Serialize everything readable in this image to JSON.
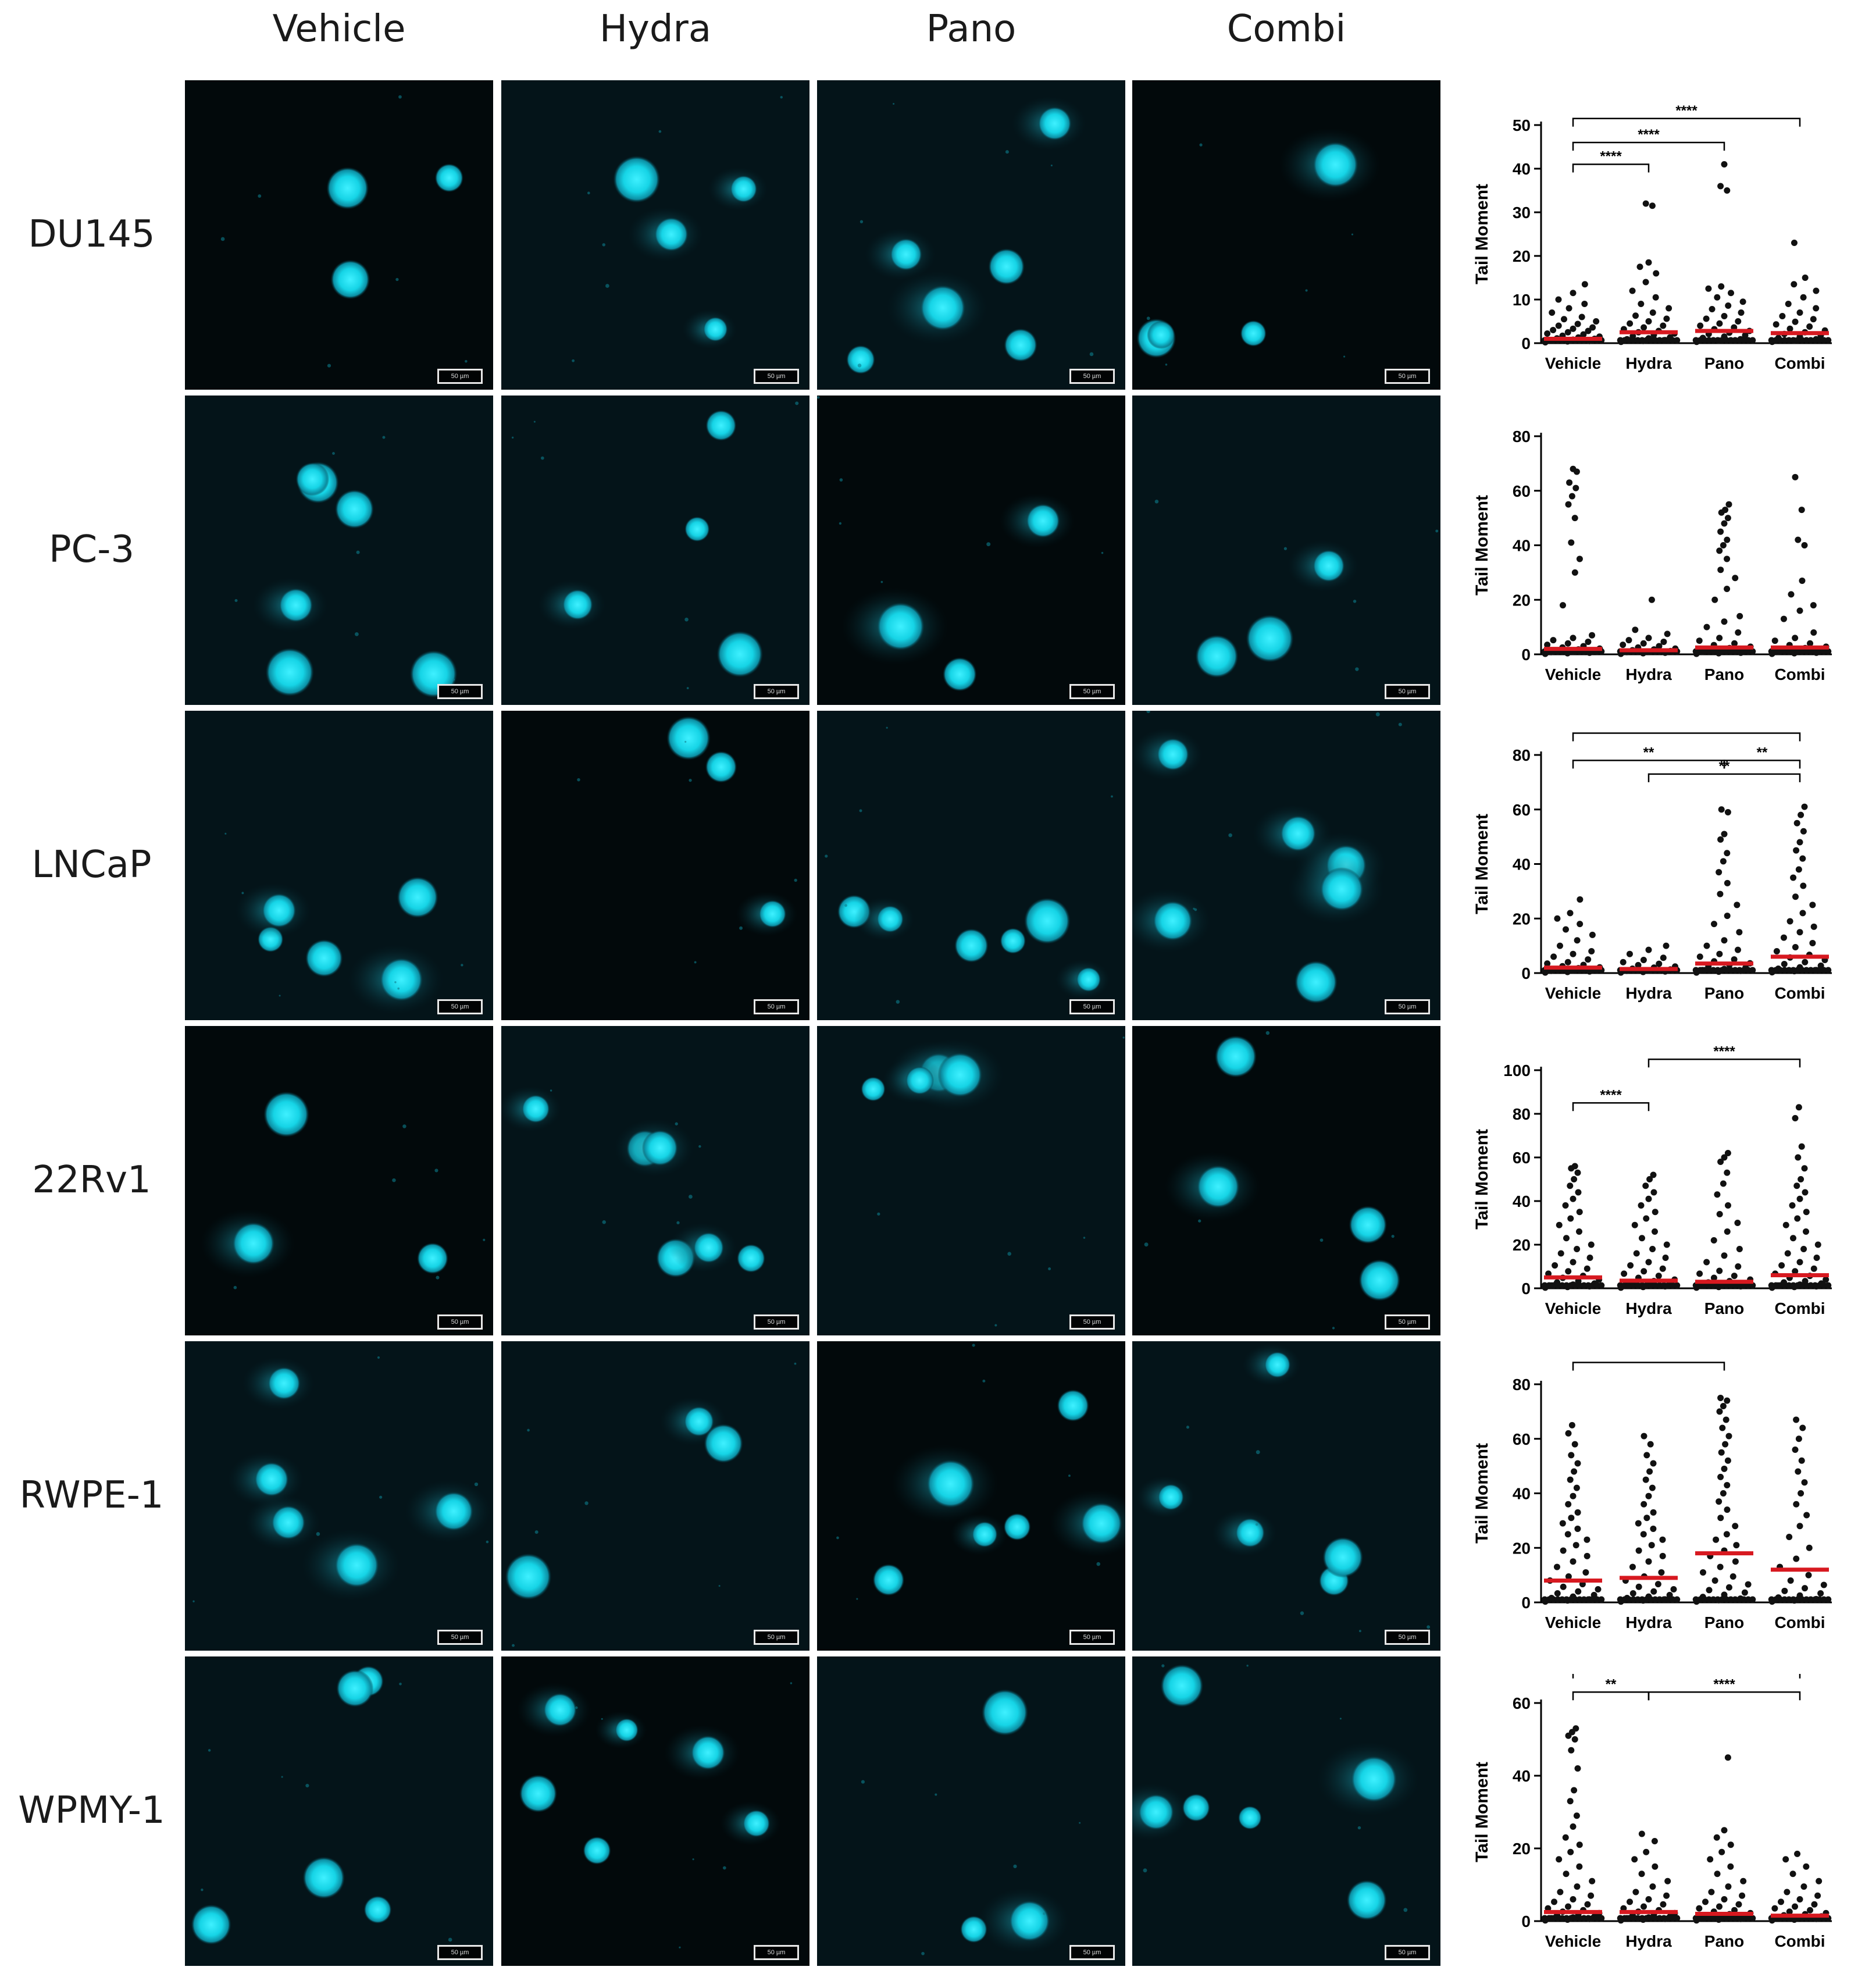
{
  "figure": {
    "columns": [
      "Vehicle",
      "Hydra",
      "Pano",
      "Combi"
    ],
    "rows": [
      "DU145",
      "PC-3",
      "LNCaP",
      "22Rv1",
      "RWPE-1",
      "WPMY-1"
    ],
    "scale_bar_label": "50 µm",
    "nucleus_color": "#16d4e6",
    "mean_line_color": "#d71920",
    "point_color": "#111111"
  },
  "chart_data": [
    {
      "type": "scatter",
      "cell_line": "DU145",
      "title": "",
      "xlabel": "",
      "ylabel": "Tail Moment",
      "categories": [
        "Vehicle",
        "Hydra",
        "Pano",
        "Combi"
      ],
      "ylim": [
        0,
        50
      ],
      "yticks": [
        0,
        10,
        20,
        30,
        40,
        50
      ],
      "means": [
        1,
        2.5,
        2.8,
        2.3
      ],
      "series": [
        {
          "values": [
            0.2,
            0.4,
            0.5,
            0.7,
            0.8,
            1,
            1.1,
            1.3,
            1.5,
            1.7,
            2,
            2.2,
            2.5,
            2.8,
            3,
            3.3,
            3.6,
            4,
            4.4,
            5,
            5.5,
            6,
            7,
            8,
            9,
            10,
            11.5,
            13.5
          ]
        },
        {
          "values": [
            0.3,
            0.5,
            0.7,
            0.9,
            1.1,
            1.3,
            1.6,
            1.9,
            2.2,
            2.5,
            2.8,
            3.2,
            3.6,
            4,
            4.5,
            5,
            5.6,
            6.3,
            7,
            8,
            9,
            10.5,
            12,
            14,
            16,
            17.5,
            18.5,
            31.5,
            32
          ]
        },
        {
          "values": [
            0.3,
            0.6,
            0.9,
            1.2,
            1.5,
            1.8,
            2.1,
            2.4,
            2.8,
            3.2,
            3.6,
            4,
            4.5,
            5,
            5.6,
            6.2,
            7,
            7.8,
            8.6,
            9.5,
            10.5,
            11.5,
            12.5,
            13,
            35,
            36,
            41
          ]
        },
        {
          "values": [
            0.3,
            0.6,
            0.9,
            1.2,
            1.5,
            1.8,
            2.1,
            2.5,
            2.9,
            3.3,
            3.8,
            4.3,
            4.9,
            5.5,
            6.2,
            7,
            8,
            9,
            10.5,
            12,
            13.5,
            15,
            23
          ]
        }
      ],
      "comparisons": [
        {
          "from": 0,
          "to": 1,
          "label": "****",
          "y": 41
        },
        {
          "from": 0,
          "to": 2,
          "label": "****",
          "y": 46
        },
        {
          "from": 0,
          "to": 3,
          "label": "****",
          "y": 51.5
        }
      ]
    },
    {
      "type": "scatter",
      "cell_line": "PC-3",
      "title": "",
      "xlabel": "",
      "ylabel": "Tail Moment",
      "categories": [
        "Vehicle",
        "Hydra",
        "Pano",
        "Combi"
      ],
      "ylim": [
        0,
        80
      ],
      "yticks": [
        0,
        20,
        40,
        60,
        80
      ],
      "means": [
        2,
        1.5,
        2.5,
        2.5
      ],
      "series": [
        {
          "values": [
            0.2,
            0.4,
            0.6,
            0.8,
            1,
            1.2,
            1.5,
            1.8,
            2.1,
            2.5,
            3,
            3.5,
            4,
            4.6,
            5.2,
            6,
            7,
            18,
            30,
            35,
            41,
            50,
            55,
            58,
            61,
            63,
            68,
            67
          ]
        },
        {
          "values": [
            0.2,
            0.4,
            0.6,
            0.8,
            1,
            1.2,
            1.5,
            1.8,
            2.1,
            2.5,
            3,
            3.5,
            4,
            4.6,
            5.2,
            6,
            7.5,
            9,
            20
          ]
        },
        {
          "values": [
            0.2,
            0.4,
            0.6,
            0.9,
            1.2,
            1.5,
            1.9,
            2.3,
            2.8,
            3.4,
            4,
            5,
            6,
            8,
            10,
            12,
            14,
            20,
            24,
            28,
            31,
            35,
            38,
            40,
            42,
            45,
            48,
            50,
            52,
            53,
            55
          ]
        },
        {
          "values": [
            0.2,
            0.4,
            0.6,
            0.9,
            1.2,
            1.5,
            1.9,
            2.3,
            2.8,
            3.4,
            4,
            5,
            6,
            8,
            13,
            16,
            18,
            22,
            27,
            40,
            42,
            53,
            65
          ]
        }
      ],
      "comparisons": []
    },
    {
      "type": "scatter",
      "cell_line": "LNCaP",
      "title": "",
      "xlabel": "",
      "ylabel": "Tail Moment",
      "categories": [
        "Vehicle",
        "Hydra",
        "Pano",
        "Combi"
      ],
      "ylim": [
        0,
        80
      ],
      "yticks": [
        0,
        20,
        40,
        60,
        80
      ],
      "means": [
        2,
        1.5,
        3.5,
        6
      ],
      "series": [
        {
          "values": [
            0.2,
            0.4,
            0.6,
            0.8,
            1,
            1.2,
            1.5,
            1.8,
            2.1,
            2.5,
            3,
            3.5,
            4,
            5,
            6,
            7,
            8,
            10,
            12,
            14,
            16,
            18,
            20,
            22,
            27
          ]
        },
        {
          "values": [
            0.2,
            0.4,
            0.6,
            0.8,
            1,
            1.3,
            1.6,
            2,
            2.4,
            2.9,
            3.4,
            4,
            4.8,
            5.6,
            7,
            8.5,
            10
          ]
        },
        {
          "values": [
            0.2,
            0.5,
            0.8,
            1.1,
            1.5,
            2,
            2.5,
            3,
            3.6,
            4.3,
            5,
            6,
            7,
            8.5,
            10,
            12,
            15,
            18,
            21,
            25,
            29,
            33,
            37,
            41,
            44,
            49,
            51,
            59,
            60
          ]
        },
        {
          "values": [
            0.3,
            0.7,
            1.1,
            1.6,
            2.1,
            2.7,
            3.3,
            4,
            4.8,
            5.7,
            6.7,
            8,
            9.5,
            11,
            13,
            15,
            17,
            19,
            22,
            25,
            28,
            32,
            35,
            38,
            42,
            45,
            48,
            52,
            55,
            58,
            61
          ]
        }
      ],
      "comparisons": [
        {
          "from": 0,
          "to": 2,
          "label": "**",
          "y": 78
        },
        {
          "from": 2,
          "to": 3,
          "label": "**",
          "y": 78
        },
        {
          "from": 1,
          "to": 3,
          "label": "**",
          "y": 73
        },
        {
          "from": 0,
          "to": 3,
          "label": "****",
          "y": 88
        }
      ]
    },
    {
      "type": "scatter",
      "cell_line": "22Rv1",
      "title": "",
      "xlabel": "",
      "ylabel": "Tail Moment",
      "categories": [
        "Vehicle",
        "Hydra",
        "Pano",
        "Combi"
      ],
      "ylim": [
        0,
        100
      ],
      "yticks": [
        0,
        20,
        40,
        60,
        80,
        100
      ],
      "means": [
        5,
        3.5,
        3,
        6
      ],
      "series": [
        {
          "values": [
            0.3,
            0.6,
            0.9,
            1.3,
            1.7,
            2.2,
            2.7,
            3.3,
            4,
            4.8,
            5.7,
            6.7,
            7.8,
            9,
            10.5,
            12,
            14,
            16,
            18,
            20,
            23,
            26,
            29,
            32,
            35,
            38,
            41,
            44,
            47,
            50,
            53,
            55,
            56
          ]
        },
        {
          "values": [
            0.3,
            0.6,
            0.9,
            1.3,
            1.7,
            2.2,
            2.7,
            3.3,
            4,
            4.8,
            5.7,
            6.7,
            7.8,
            9,
            10.5,
            12,
            14,
            16,
            18,
            20,
            23,
            26,
            29,
            32,
            35,
            38,
            41,
            44,
            47,
            50,
            52
          ]
        },
        {
          "values": [
            0.3,
            0.6,
            0.9,
            1.3,
            1.7,
            2.2,
            2.7,
            3.3,
            4,
            4.8,
            5.7,
            6.7,
            8,
            10,
            12,
            15,
            18,
            22,
            26,
            30,
            34,
            38,
            43,
            48,
            53,
            58,
            60,
            62
          ]
        },
        {
          "values": [
            0.3,
            0.6,
            0.9,
            1.3,
            1.7,
            2.2,
            2.7,
            3.3,
            4,
            4.8,
            5.7,
            6.7,
            7.8,
            9,
            10.5,
            12,
            14,
            16,
            18,
            20,
            23,
            26,
            29,
            32,
            35,
            38,
            41,
            44,
            47,
            50,
            55,
            60,
            65,
            78,
            83
          ]
        }
      ],
      "comparisons": [
        {
          "from": 0,
          "to": 1,
          "label": "****",
          "y": 85
        },
        {
          "from": 1,
          "to": 3,
          "label": "****",
          "y": 105
        }
      ]
    },
    {
      "type": "scatter",
      "cell_line": "RWPE-1",
      "title": "",
      "xlabel": "",
      "ylabel": "Tail Moment",
      "categories": [
        "Vehicle",
        "Hydra",
        "Pano",
        "Combi"
      ],
      "ylim": [
        0,
        80
      ],
      "yticks": [
        0,
        20,
        40,
        60,
        80
      ],
      "means": [
        8,
        9,
        18,
        12
      ],
      "series": [
        {
          "values": [
            0.3,
            0.7,
            1.1,
            1.6,
            2.1,
            2.7,
            3.3,
            4,
            4.8,
            5.7,
            6.7,
            8,
            9.5,
            11,
            13,
            15,
            17,
            19,
            21,
            23,
            25,
            27,
            29,
            31,
            33,
            36,
            39,
            42,
            45,
            48,
            51,
            54,
            58,
            62,
            65
          ]
        },
        {
          "values": [
            0.3,
            0.7,
            1.1,
            1.6,
            2.1,
            2.7,
            3.3,
            4,
            4.8,
            5.7,
            6.7,
            8,
            9.5,
            11,
            13,
            15,
            17,
            19,
            21,
            23,
            25,
            27,
            29,
            31,
            33,
            36,
            39,
            42,
            45,
            48,
            51,
            54,
            58,
            61
          ]
        },
        {
          "values": [
            0.3,
            0.8,
            1.4,
            2,
            2.8,
            3.6,
            4.5,
            5.5,
            6.6,
            8,
            9.5,
            11,
            13,
            15,
            17,
            19,
            21,
            23,
            25,
            28,
            31,
            34,
            37,
            40,
            43,
            46,
            49,
            52,
            55,
            58,
            61,
            64,
            67,
            70,
            72,
            74,
            75
          ]
        },
        {
          "values": [
            0.3,
            0.7,
            1.2,
            1.8,
            2.5,
            3.3,
            4.2,
            5.2,
            6.4,
            8,
            10,
            13,
            16,
            20,
            24,
            28,
            32,
            36,
            40,
            44,
            48,
            52,
            56,
            60,
            64,
            67
          ]
        }
      ],
      "comparisons": [
        {
          "from": 0,
          "to": 2,
          "label": "****",
          "y": 88
        }
      ]
    },
    {
      "type": "scatter",
      "cell_line": "WPMY-1",
      "title": "",
      "xlabel": "",
      "ylabel": "Tail Moment",
      "categories": [
        "Vehicle",
        "Hydra",
        "Pano",
        "Combi"
      ],
      "ylim": [
        0,
        60
      ],
      "yticks": [
        0,
        20,
        40,
        60
      ],
      "means": [
        2.5,
        2.5,
        2,
        1.5
      ],
      "series": [
        {
          "values": [
            0.2,
            0.4,
            0.6,
            0.8,
            1,
            1.3,
            1.6,
            1.9,
            2.2,
            2.6,
            3,
            3.5,
            4,
            4.6,
            5.3,
            6,
            7,
            8,
            9.5,
            11,
            13,
            15,
            17,
            19,
            21,
            23,
            26,
            29,
            33,
            36,
            42,
            47,
            50,
            51,
            52,
            53
          ]
        },
        {
          "values": [
            0.2,
            0.4,
            0.6,
            0.8,
            1,
            1.3,
            1.6,
            1.9,
            2.2,
            2.6,
            3,
            3.5,
            4,
            4.6,
            5.3,
            6,
            7,
            8,
            9.5,
            11,
            13,
            15,
            17,
            19,
            22,
            24
          ]
        },
        {
          "values": [
            0.2,
            0.4,
            0.6,
            0.8,
            1,
            1.3,
            1.6,
            1.9,
            2.2,
            2.6,
            3,
            3.5,
            4,
            4.6,
            5.3,
            6,
            7,
            8,
            9.5,
            11,
            13,
            15,
            17,
            19,
            21,
            23,
            25,
            45
          ]
        },
        {
          "values": [
            0.2,
            0.4,
            0.6,
            0.8,
            1,
            1.3,
            1.6,
            1.9,
            2.2,
            2.6,
            3,
            3.5,
            4,
            4.6,
            5.3,
            6,
            7,
            8,
            9.5,
            11,
            13,
            15,
            17,
            18.5
          ]
        }
      ],
      "comparisons": [
        {
          "from": 0,
          "to": 1,
          "label": "**",
          "y": 63
        },
        {
          "from": 1,
          "to": 3,
          "label": "****",
          "y": 63
        },
        {
          "from": 0,
          "to": 3,
          "label": "*",
          "y": 69
        }
      ]
    }
  ]
}
